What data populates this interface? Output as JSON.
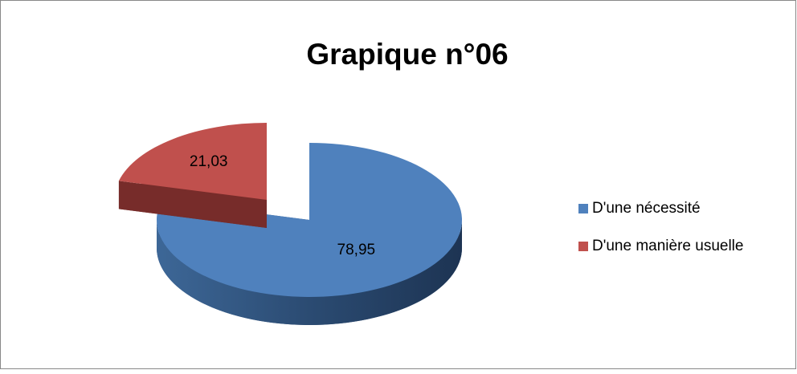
{
  "chart_data": {
    "type": "pie",
    "title": "Grapique n°06",
    "categories": [
      "D'une nécessité",
      "D'une manière usuelle"
    ],
    "values": [
      78.95,
      21.03
    ],
    "value_labels": [
      "78,95",
      "21,03"
    ],
    "colors": [
      "#4f81bd",
      "#c0504d"
    ],
    "legend": "right"
  }
}
